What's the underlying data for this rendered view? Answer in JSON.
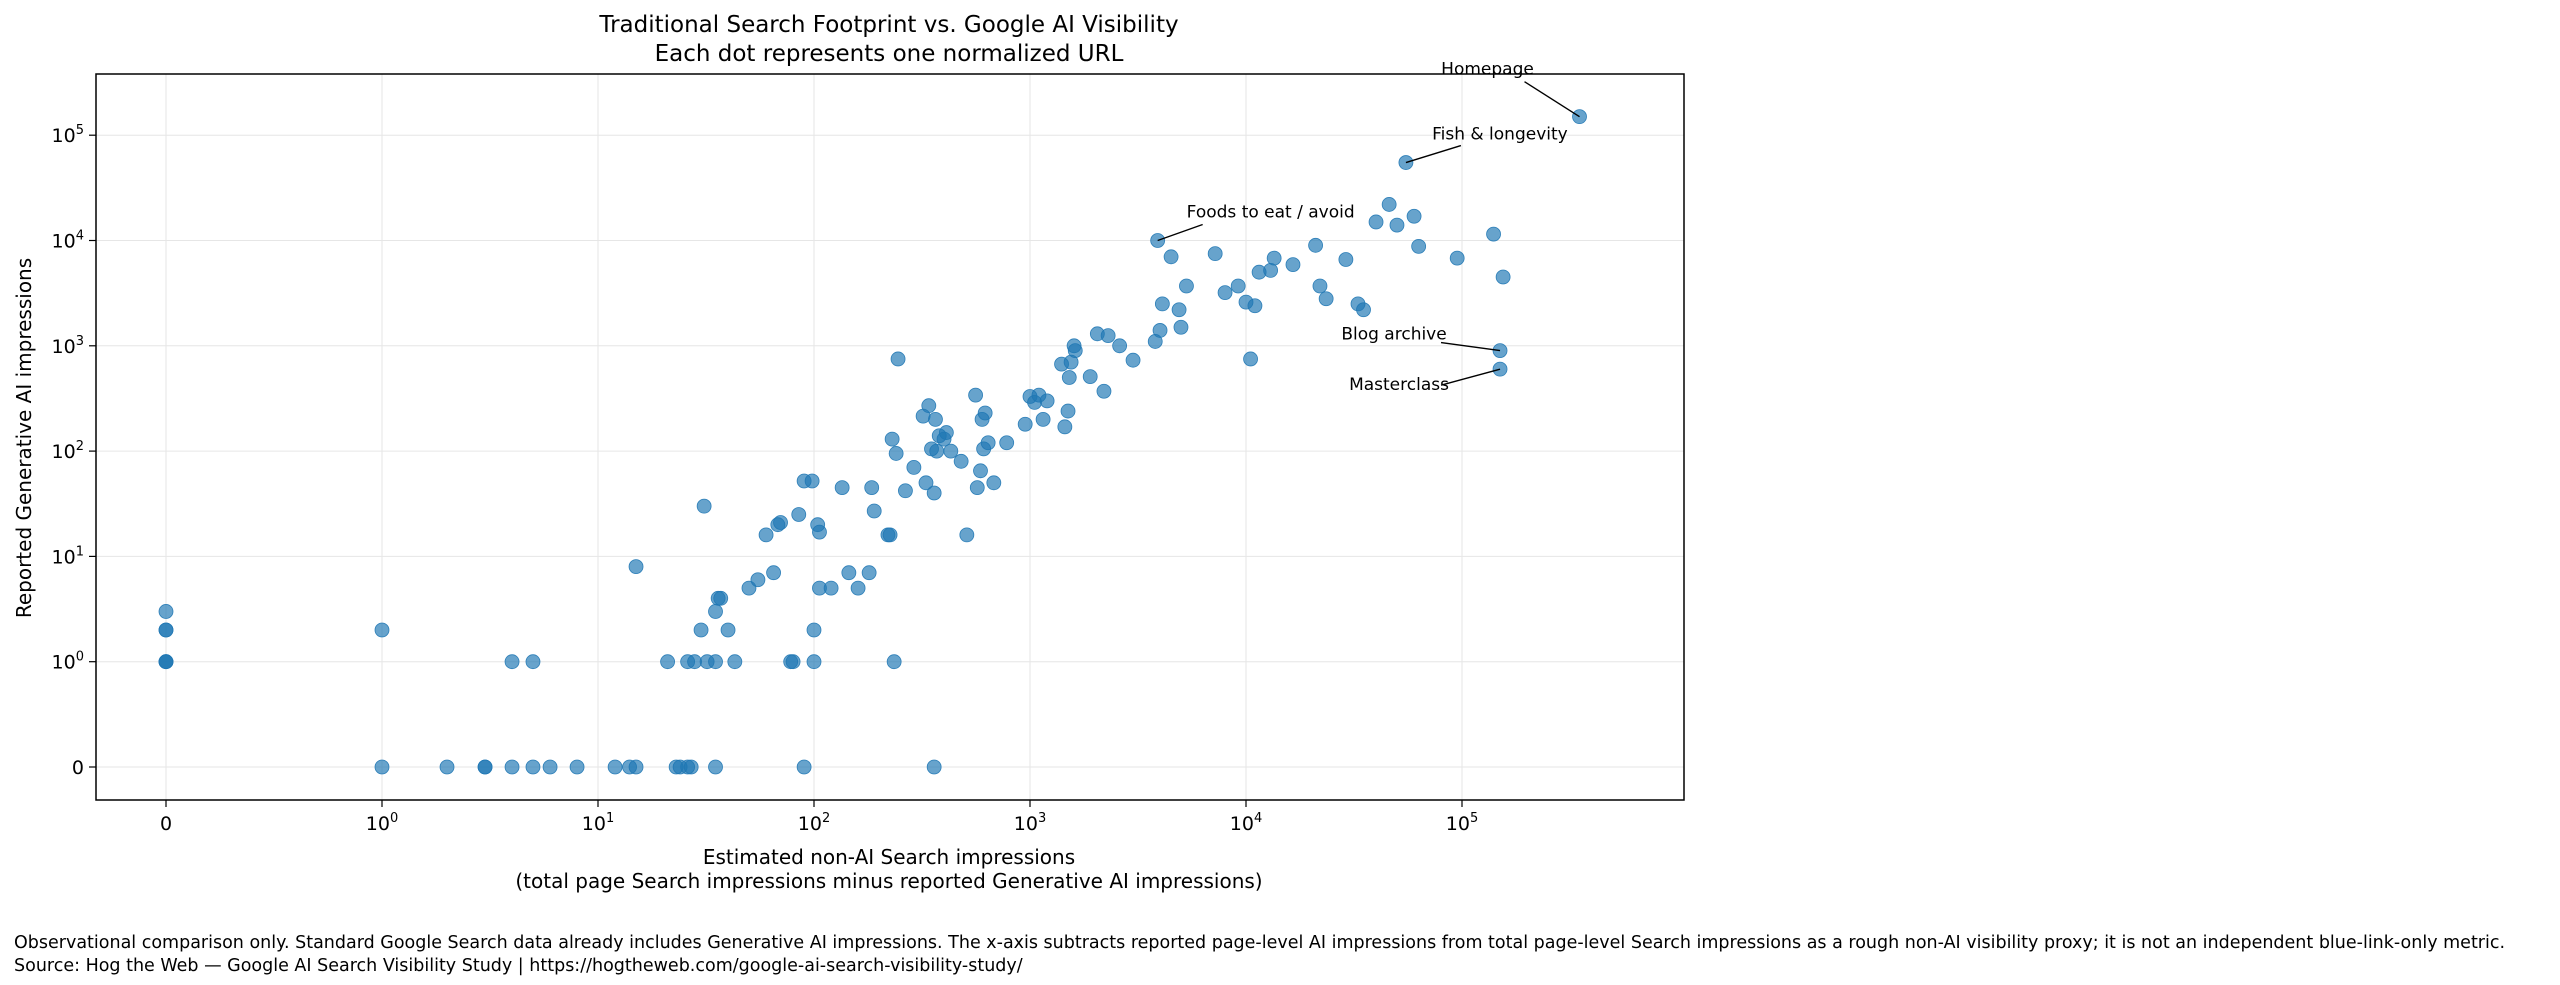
{
  "chart_data": {
    "type": "scatter",
    "title": "Traditional Search Footprint vs. Google AI Visibility",
    "subtitle": "Each dot represents one normalized URL",
    "xlabel": "Estimated non-AI Search impressions",
    "xlabel_sub": "(total page Search impressions minus reported Generative AI impressions)",
    "ylabel": "Reported Generative AI impressions",
    "x_scale": "symlog",
    "y_scale": "symlog",
    "xlim": [
      0,
      1000000
    ],
    "ylim": [
      0,
      300000
    ],
    "x_ticks": [
      {
        "value": 0,
        "label": "0"
      },
      {
        "value": 1,
        "base": "10",
        "exp": "0"
      },
      {
        "value": 10,
        "base": "10",
        "exp": "1"
      },
      {
        "value": 100,
        "base": "10",
        "exp": "2"
      },
      {
        "value": 1000,
        "base": "10",
        "exp": "3"
      },
      {
        "value": 10000,
        "base": "10",
        "exp": "4"
      },
      {
        "value": 100000,
        "base": "10",
        "exp": "5"
      }
    ],
    "y_ticks": [
      {
        "value": 0,
        "label": "0"
      },
      {
        "value": 1,
        "base": "10",
        "exp": "0"
      },
      {
        "value": 10,
        "base": "10",
        "exp": "1"
      },
      {
        "value": 100,
        "base": "10",
        "exp": "2"
      },
      {
        "value": 1000,
        "base": "10",
        "exp": "3"
      },
      {
        "value": 10000,
        "base": "10",
        "exp": "4"
      },
      {
        "value": 100000,
        "base": "10",
        "exp": "5"
      }
    ],
    "grid": true,
    "marker_color": "#1f77b4",
    "points": [
      [
        0,
        1
      ],
      [
        0,
        1
      ],
      [
        0,
        1
      ],
      [
        0,
        2
      ],
      [
        0,
        2
      ],
      [
        0,
        3
      ],
      [
        1,
        0
      ],
      [
        1,
        2
      ],
      [
        2,
        0
      ],
      [
        3,
        0
      ],
      [
        3,
        0
      ],
      [
        4,
        0
      ],
      [
        5,
        0
      ],
      [
        6,
        0
      ],
      [
        8,
        0
      ],
      [
        12,
        0
      ],
      [
        14,
        0
      ],
      [
        15,
        0
      ],
      [
        23,
        0
      ],
      [
        24,
        0
      ],
      [
        26,
        0
      ],
      [
        27,
        0
      ],
      [
        35,
        0
      ],
      [
        90,
        0
      ],
      [
        360,
        0
      ],
      [
        4,
        1
      ],
      [
        5,
        1
      ],
      [
        15,
        8
      ],
      [
        21,
        1
      ],
      [
        26,
        1
      ],
      [
        28,
        1
      ],
      [
        30,
        2
      ],
      [
        31,
        30
      ],
      [
        32,
        1
      ],
      [
        35,
        1
      ],
      [
        35,
        3
      ],
      [
        36,
        4
      ],
      [
        37,
        4
      ],
      [
        40,
        2
      ],
      [
        43,
        1
      ],
      [
        50,
        5
      ],
      [
        55,
        6
      ],
      [
        60,
        16
      ],
      [
        65,
        7
      ],
      [
        68,
        20
      ],
      [
        70,
        21
      ],
      [
        78,
        1
      ],
      [
        80,
        1
      ],
      [
        85,
        25
      ],
      [
        90,
        52
      ],
      [
        98,
        52
      ],
      [
        100,
        2
      ],
      [
        100,
        1
      ],
      [
        104,
        20
      ],
      [
        106,
        17
      ],
      [
        106,
        5
      ],
      [
        120,
        5
      ],
      [
        135,
        45
      ],
      [
        145,
        7
      ],
      [
        160,
        5
      ],
      [
        180,
        7
      ],
      [
        185,
        45
      ],
      [
        190,
        27
      ],
      [
        220,
        16
      ],
      [
        225,
        16
      ],
      [
        230,
        130
      ],
      [
        235,
        1
      ],
      [
        240,
        95
      ],
      [
        245,
        750
      ],
      [
        265,
        42
      ],
      [
        290,
        70
      ],
      [
        320,
        215
      ],
      [
        330,
        50
      ],
      [
        340,
        270
      ],
      [
        350,
        105
      ],
      [
        360,
        40
      ],
      [
        365,
        200
      ],
      [
        370,
        100
      ],
      [
        380,
        140
      ],
      [
        400,
        130
      ],
      [
        410,
        150
      ],
      [
        430,
        100
      ],
      [
        480,
        80
      ],
      [
        510,
        16
      ],
      [
        560,
        340
      ],
      [
        570,
        45
      ],
      [
        590,
        65
      ],
      [
        600,
        200
      ],
      [
        610,
        105
      ],
      [
        620,
        230
      ],
      [
        640,
        120
      ],
      [
        680,
        50
      ],
      [
        780,
        120
      ],
      [
        950,
        180
      ],
      [
        1000,
        330
      ],
      [
        1050,
        290
      ],
      [
        1100,
        340
      ],
      [
        1150,
        200
      ],
      [
        1200,
        300
      ],
      [
        1400,
        670
      ],
      [
        1450,
        170
      ],
      [
        1500,
        240
      ],
      [
        1520,
        500
      ],
      [
        1550,
        700
      ],
      [
        1600,
        1000
      ],
      [
        1620,
        900
      ],
      [
        1900,
        510
      ],
      [
        2050,
        1300
      ],
      [
        2200,
        370
      ],
      [
        2300,
        1250
      ],
      [
        2600,
        1000
      ],
      [
        3000,
        730
      ],
      [
        3800,
        1100
      ],
      [
        3900,
        10000
      ],
      [
        4000,
        1400
      ],
      [
        4100,
        2500
      ],
      [
        4500,
        7000
      ],
      [
        4900,
        2200
      ],
      [
        5000,
        1500
      ],
      [
        5300,
        3700
      ],
      [
        7200,
        7500
      ],
      [
        8000,
        3200
      ],
      [
        9200,
        3700
      ],
      [
        10000,
        2600
      ],
      [
        10500,
        750
      ],
      [
        11000,
        2400
      ],
      [
        11500,
        5000
      ],
      [
        13000,
        5200
      ],
      [
        13500,
        6800
      ],
      [
        16500,
        5900
      ],
      [
        21000,
        9000
      ],
      [
        22000,
        3700
      ],
      [
        23500,
        2800
      ],
      [
        29000,
        6600
      ],
      [
        33000,
        2500
      ],
      [
        35000,
        2200
      ],
      [
        40000,
        15000
      ],
      [
        46000,
        22000
      ],
      [
        50000,
        14000
      ],
      [
        60000,
        17000
      ],
      [
        63000,
        8800
      ],
      [
        95000,
        6800
      ],
      [
        140000,
        11500
      ],
      [
        155000,
        4500
      ],
      [
        55000,
        55000
      ],
      [
        350000,
        150000
      ],
      [
        150000,
        900
      ],
      [
        150000,
        600
      ]
    ],
    "annotations": [
      {
        "text": "Homepage",
        "x": 350000,
        "y": 150000
      },
      {
        "text": "Fish & longevity",
        "x": 55000,
        "y": 55000
      },
      {
        "text": "Foods to eat / avoid",
        "x": 3900,
        "y": 10000
      },
      {
        "text": "Blog archive",
        "x": 150000,
        "y": 900
      },
      {
        "text": "Masterclass",
        "x": 150000,
        "y": 600
      }
    ]
  },
  "footer": {
    "note": "Observational comparison only. Standard Google Search data already includes Generative AI impressions. The x-axis subtracts reported page-level AI impressions from total page-level Search impressions as a rough non-AI visibility proxy; it is not an independent blue-link-only metric.",
    "source": "Source: Hog the Web — Google AI Search Visibility Study | https://hogtheweb.com/google-ai-search-visibility-study/"
  }
}
